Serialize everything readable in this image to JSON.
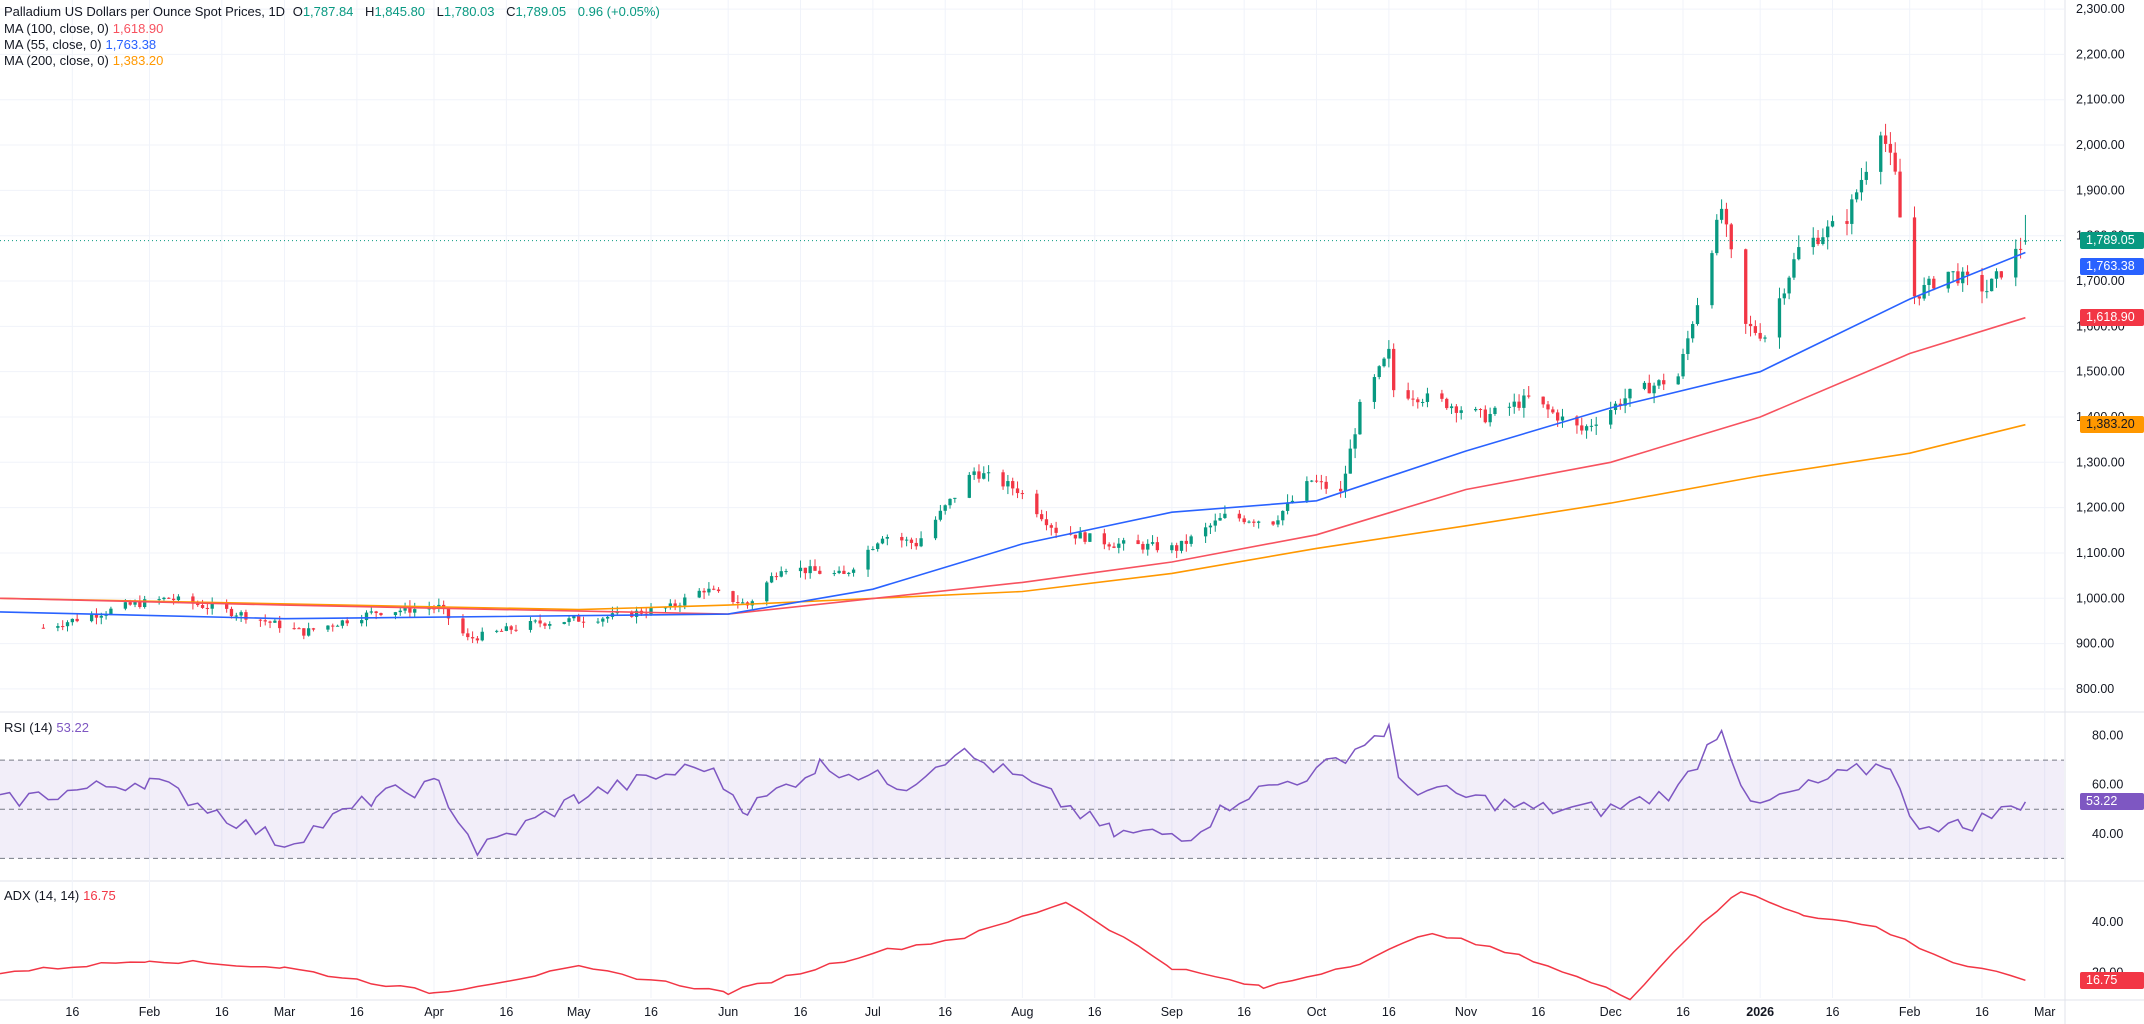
{
  "legend": {
    "main": {
      "name": "Palladium US Dollars per Ounce Spot Prices, 1D",
      "o_label": "O",
      "o": "1,787.84",
      "h_label": "H",
      "h": "1,845.80",
      "l_label": "L",
      "l": "1,780.03",
      "c_label": "C",
      "c": "1,789.05",
      "change": "0.96 (+0.05%)"
    },
    "ma100": {
      "label": "MA (100, close, 0)",
      "value": "1,618.90"
    },
    "ma55": {
      "label": "MA (55, close, 0)",
      "value": "1,763.38"
    },
    "ma200": {
      "label": "MA (200, close, 0)",
      "value": "1,383.20"
    },
    "rsi": {
      "label": "RSI (14)",
      "value": "53.22"
    },
    "adx": {
      "label": "ADX (14, 14)",
      "value": "16.75"
    }
  },
  "colors": {
    "up": "#089981",
    "down": "#f23645",
    "ma100": "#f7525f",
    "ma55": "#2962ff",
    "ma200": "#ff9800",
    "rsi": "#7e57c2",
    "adx": "#f23645",
    "grid": "#f0f3fa",
    "axis_text": "#131722"
  },
  "badges": {
    "last": "1,789.05",
    "ma55": "1,763.38",
    "ma100": "1,618.90",
    "ma200": "1,383.20",
    "rsi": "53.22",
    "adx": "16.75"
  },
  "price_axis": {
    "ticks": [
      "800.00",
      "900.00",
      "1,000.00",
      "1,100.00",
      "1,200.00",
      "1,300.00",
      "1,400.00",
      "1,500.00",
      "1,600.00",
      "1,700.00",
      "1,800.00",
      "1,900.00",
      "2,000.00",
      "2,100.00",
      "2,200.00",
      "2,300.00"
    ]
  },
  "rsi_axis": {
    "ticks": [
      "40.00",
      "60.00",
      "80.00"
    ]
  },
  "adx_axis": {
    "ticks": [
      "20.00",
      "40.00"
    ]
  },
  "time_axis": {
    "labels": [
      "16",
      "Feb",
      "16",
      "Mar",
      "16",
      "Apr",
      "16",
      "May",
      "16",
      "Jun",
      "16",
      "Jul",
      "16",
      "Aug",
      "16",
      "Sep",
      "16",
      "Oct",
      "16",
      "Nov",
      "16",
      "Dec",
      "16",
      "2026",
      "16",
      "Feb",
      "16",
      "Mar"
    ]
  },
  "chart_data": {
    "type": "candlestick",
    "title": "Palladium US Dollars per Ounce Spot Prices, 1D",
    "price_range": [
      780,
      2320
    ],
    "anchors": [
      {
        "date": "2025-01-10",
        "price": 935
      },
      {
        "date": "2025-01-28",
        "price": 985
      },
      {
        "date": "2025-02-05",
        "price": 1000
      },
      {
        "date": "2025-02-20",
        "price": 965
      },
      {
        "date": "2025-03-05",
        "price": 925
      },
      {
        "date": "2025-03-20",
        "price": 970
      },
      {
        "date": "2025-04-02",
        "price": 980
      },
      {
        "date": "2025-04-08",
        "price": 910
      },
      {
        "date": "2025-04-22",
        "price": 945
      },
      {
        "date": "2025-05-08",
        "price": 960
      },
      {
        "date": "2025-05-20",
        "price": 980
      },
      {
        "date": "2025-05-27",
        "price": 1020
      },
      {
        "date": "2025-06-05",
        "price": 985
      },
      {
        "date": "2025-06-12",
        "price": 1070
      },
      {
        "date": "2025-06-25",
        "price": 1050
      },
      {
        "date": "2025-07-03",
        "price": 1140
      },
      {
        "date": "2025-07-10",
        "price": 1120
      },
      {
        "date": "2025-07-22",
        "price": 1280
      },
      {
        "date": "2025-07-31",
        "price": 1240
      },
      {
        "date": "2025-08-08",
        "price": 1150
      },
      {
        "date": "2025-08-20",
        "price": 1120
      },
      {
        "date": "2025-09-02",
        "price": 1110
      },
      {
        "date": "2025-09-12",
        "price": 1180
      },
      {
        "date": "2025-09-22",
        "price": 1170
      },
      {
        "date": "2025-09-30",
        "price": 1260
      },
      {
        "date": "2025-10-06",
        "price": 1230
      },
      {
        "date": "2025-10-10",
        "price": 1420
      },
      {
        "date": "2025-10-16",
        "price": 1540
      },
      {
        "date": "2025-10-17",
        "price": 1460
      },
      {
        "date": "2025-10-28",
        "price": 1430
      },
      {
        "date": "2025-11-05",
        "price": 1400
      },
      {
        "date": "2025-11-14",
        "price": 1440
      },
      {
        "date": "2025-11-25",
        "price": 1370
      },
      {
        "date": "2025-12-05",
        "price": 1450
      },
      {
        "date": "2025-12-15",
        "price": 1490
      },
      {
        "date": "2025-12-24",
        "price": 1860
      },
      {
        "date": "2025-12-29",
        "price": 1600
      },
      {
        "date": "2026-01-02",
        "price": 1580
      },
      {
        "date": "2026-01-09",
        "price": 1770
      },
      {
        "date": "2026-01-19",
        "price": 1840
      },
      {
        "date": "2026-01-26",
        "price": 2040
      },
      {
        "date": "2026-01-29",
        "price": 1930
      },
      {
        "date": "2026-02-01",
        "price": 1660
      },
      {
        "date": "2026-02-09",
        "price": 1720
      },
      {
        "date": "2026-02-17",
        "price": 1680
      },
      {
        "date": "2026-02-25",
        "price": 1789
      }
    ],
    "last": {
      "o": 1787.84,
      "h": 1845.8,
      "l": 1780.03,
      "c": 1789.05
    },
    "ma_series": {
      "ma55": [
        {
          "date": "2025-01-01",
          "price": 970
        },
        {
          "date": "2025-03-01",
          "price": 955
        },
        {
          "date": "2025-06-01",
          "price": 965
        },
        {
          "date": "2025-07-01",
          "price": 1020
        },
        {
          "date": "2025-08-01",
          "price": 1120
        },
        {
          "date": "2025-09-01",
          "price": 1190
        },
        {
          "date": "2025-10-01",
          "price": 1215
        },
        {
          "date": "2025-11-01",
          "price": 1325
        },
        {
          "date": "2025-12-01",
          "price": 1420
        },
        {
          "date": "2026-01-01",
          "price": 1500
        },
        {
          "date": "2026-02-01",
          "price": 1660
        },
        {
          "date": "2026-02-25",
          "price": 1763
        }
      ],
      "ma100": [
        {
          "date": "2025-01-01",
          "price": 1000
        },
        {
          "date": "2025-03-01",
          "price": 985
        },
        {
          "date": "2025-06-01",
          "price": 965
        },
        {
          "date": "2025-08-01",
          "price": 1035
        },
        {
          "date": "2025-09-01",
          "price": 1080
        },
        {
          "date": "2025-10-01",
          "price": 1140
        },
        {
          "date": "2025-11-01",
          "price": 1240
        },
        {
          "date": "2025-12-01",
          "price": 1300
        },
        {
          "date": "2026-01-01",
          "price": 1400
        },
        {
          "date": "2026-02-01",
          "price": 1540
        },
        {
          "date": "2026-02-25",
          "price": 1619
        }
      ],
      "ma200": [
        {
          "date": "2025-01-01",
          "price": 1000
        },
        {
          "date": "2025-05-01",
          "price": 975
        },
        {
          "date": "2025-06-01",
          "price": 985
        },
        {
          "date": "2025-08-01",
          "price": 1015
        },
        {
          "date": "2025-09-01",
          "price": 1055
        },
        {
          "date": "2025-10-01",
          "price": 1110
        },
        {
          "date": "2025-11-01",
          "price": 1160
        },
        {
          "date": "2025-12-01",
          "price": 1210
        },
        {
          "date": "2026-01-01",
          "price": 1270
        },
        {
          "date": "2026-02-01",
          "price": 1320
        },
        {
          "date": "2026-02-25",
          "price": 1383
        }
      ]
    },
    "rsi": {
      "range": [
        22,
        88
      ],
      "bands": [
        30,
        70
      ],
      "mid": 50,
      "anchors": [
        {
          "date": "2025-01-01",
          "v": 53
        },
        {
          "date": "2025-02-01",
          "v": 62
        },
        {
          "date": "2025-03-01",
          "v": 36
        },
        {
          "date": "2025-03-20",
          "v": 55
        },
        {
          "date": "2025-04-02",
          "v": 60
        },
        {
          "date": "2025-04-10",
          "v": 33
        },
        {
          "date": "2025-05-01",
          "v": 55
        },
        {
          "date": "2025-05-27",
          "v": 68
        },
        {
          "date": "2025-06-05",
          "v": 50
        },
        {
          "date": "2025-06-20",
          "v": 68
        },
        {
          "date": "2025-07-08",
          "v": 60
        },
        {
          "date": "2025-07-18",
          "v": 74
        },
        {
          "date": "2025-08-01",
          "v": 62
        },
        {
          "date": "2025-08-20",
          "v": 40
        },
        {
          "date": "2025-09-05",
          "v": 40
        },
        {
          "date": "2025-09-15",
          "v": 55
        },
        {
          "date": "2025-10-01",
          "v": 65
        },
        {
          "date": "2025-10-16",
          "v": 83
        },
        {
          "date": "2025-10-18",
          "v": 60
        },
        {
          "date": "2025-11-15",
          "v": 50
        },
        {
          "date": "2025-12-01",
          "v": 50
        },
        {
          "date": "2025-12-15",
          "v": 58
        },
        {
          "date": "2025-12-24",
          "v": 84
        },
        {
          "date": "2025-12-30",
          "v": 50
        },
        {
          "date": "2026-01-15",
          "v": 62
        },
        {
          "date": "2026-01-28",
          "v": 69
        },
        {
          "date": "2026-02-01",
          "v": 45
        },
        {
          "date": "2026-02-12",
          "v": 43
        },
        {
          "date": "2026-02-25",
          "v": 53
        }
      ]
    },
    "adx": {
      "range": [
        10,
        55
      ],
      "anchors": [
        {
          "date": "2025-01-01",
          "v": 20
        },
        {
          "date": "2025-02-01",
          "v": 25
        },
        {
          "date": "2025-03-01",
          "v": 22
        },
        {
          "date": "2025-04-01",
          "v": 12
        },
        {
          "date": "2025-05-01",
          "v": 22
        },
        {
          "date": "2025-06-01",
          "v": 12
        },
        {
          "date": "2025-07-01",
          "v": 28
        },
        {
          "date": "2025-07-20",
          "v": 34
        },
        {
          "date": "2025-08-10",
          "v": 48
        },
        {
          "date": "2025-09-01",
          "v": 22
        },
        {
          "date": "2025-09-20",
          "v": 14
        },
        {
          "date": "2025-10-10",
          "v": 24
        },
        {
          "date": "2025-10-25",
          "v": 36
        },
        {
          "date": "2025-11-15",
          "v": 25
        },
        {
          "date": "2025-12-05",
          "v": 10
        },
        {
          "date": "2025-12-20",
          "v": 40
        },
        {
          "date": "2025-12-28",
          "v": 52
        },
        {
          "date": "2026-01-10",
          "v": 43
        },
        {
          "date": "2026-01-25",
          "v": 38
        },
        {
          "date": "2026-02-10",
          "v": 24
        },
        {
          "date": "2026-02-25",
          "v": 17
        }
      ]
    }
  }
}
